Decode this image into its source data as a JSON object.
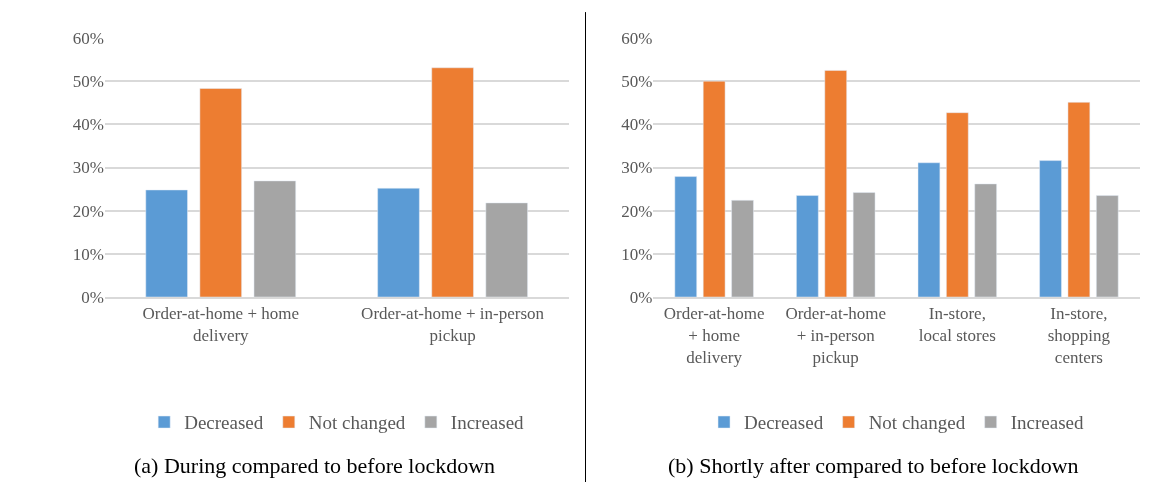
{
  "chart_data": [
    {
      "type": "bar",
      "title": "(a) During compared to before lockdown",
      "categories": [
        "Order-at-home + home delivery",
        "Order-at-home + in-person pickup"
      ],
      "series": [
        {
          "name": "Decreased",
          "color": "#5b9bd5",
          "values": [
            24.8,
            25.2
          ]
        },
        {
          "name": "Not changed",
          "color": "#ed7d31",
          "values": [
            48.3,
            53.1
          ]
        },
        {
          "name": "Increased",
          "color": "#a5a5a5",
          "values": [
            26.9,
            21.8
          ]
        }
      ],
      "ylim": [
        0,
        60
      ],
      "yticks": [
        {
          "value": 0,
          "label": "0%"
        },
        {
          "value": 10,
          "label": "10%"
        },
        {
          "value": 20,
          "label": "20%"
        },
        {
          "value": 30,
          "label": "30%"
        },
        {
          "value": 40,
          "label": "40%"
        },
        {
          "value": 50,
          "label": "50%"
        },
        {
          "value": 60,
          "label": "60%"
        }
      ],
      "grid": "y",
      "legend": "bottom"
    },
    {
      "type": "bar",
      "title": "(b) Shortly after compared to before lockdown",
      "categories": [
        "Order-at-home + home delivery",
        "Order-at-home + in-person pickup",
        "In-store, local stores",
        "In-store, shopping centers"
      ],
      "series": [
        {
          "name": "Decreased",
          "color": "#5b9bd5",
          "values": [
            27.9,
            23.5,
            31.1,
            31.6
          ]
        },
        {
          "name": "Not changed",
          "color": "#ed7d31",
          "values": [
            50.0,
            52.5,
            42.7,
            45.1
          ]
        },
        {
          "name": "Increased",
          "color": "#a5a5a5",
          "values": [
            22.4,
            24.2,
            26.2,
            23.5
          ]
        }
      ],
      "ylim": [
        0,
        60
      ],
      "yticks": [
        {
          "value": 0,
          "label": "0%"
        },
        {
          "value": 10,
          "label": "10%"
        },
        {
          "value": 20,
          "label": "20%"
        },
        {
          "value": 30,
          "label": "30%"
        },
        {
          "value": 40,
          "label": "40%"
        },
        {
          "value": 50,
          "label": "50%"
        },
        {
          "value": 60,
          "label": "60%"
        }
      ],
      "grid": "y",
      "legend": "bottom"
    }
  ]
}
